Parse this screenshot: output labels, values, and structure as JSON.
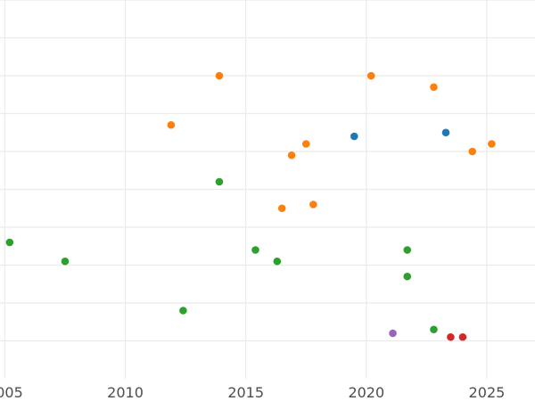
{
  "chart_data": {
    "type": "scatter",
    "title": "",
    "xlabel": "",
    "ylabel": "",
    "xlim": [
      2004.8,
      2027.0
    ],
    "ylim": [
      0,
      10
    ],
    "x_ticks": [
      2005,
      2010,
      2015,
      2020,
      2025
    ],
    "x_tick_labels": [
      "2005",
      "2010",
      "2015",
      "2020",
      "2025"
    ],
    "y_gridlines": [
      1,
      2,
      3,
      4,
      5,
      6,
      7,
      8,
      9,
      10
    ],
    "grid": true,
    "legend": "none",
    "series": [
      {
        "color": "#1f77b4",
        "points": [
          {
            "x": 2019.5,
            "y": 6.4
          },
          {
            "x": 2023.3,
            "y": 6.5
          }
        ]
      },
      {
        "color": "#ff7f0e",
        "points": [
          {
            "x": 2013.9,
            "y": 8.0
          },
          {
            "x": 2020.2,
            "y": 8.0
          },
          {
            "x": 2022.8,
            "y": 7.7
          },
          {
            "x": 2011.9,
            "y": 6.7
          },
          {
            "x": 2017.5,
            "y": 6.2
          },
          {
            "x": 2025.2,
            "y": 6.2
          },
          {
            "x": 2016.9,
            "y": 5.9
          },
          {
            "x": 2024.4,
            "y": 6.0
          },
          {
            "x": 2016.5,
            "y": 4.5
          },
          {
            "x": 2017.8,
            "y": 4.6
          }
        ]
      },
      {
        "color": "#2ca02c",
        "points": [
          {
            "x": 2005.2,
            "y": 3.6
          },
          {
            "x": 2007.5,
            "y": 3.1
          },
          {
            "x": 2013.9,
            "y": 5.2
          },
          {
            "x": 2015.4,
            "y": 3.4
          },
          {
            "x": 2016.3,
            "y": 3.1
          },
          {
            "x": 2021.7,
            "y": 3.4
          },
          {
            "x": 2021.7,
            "y": 2.7
          },
          {
            "x": 2012.4,
            "y": 1.8
          },
          {
            "x": 2022.8,
            "y": 1.3
          }
        ]
      },
      {
        "color": "#d62728",
        "points": [
          {
            "x": 2023.5,
            "y": 1.1
          },
          {
            "x": 2024.0,
            "y": 1.1
          }
        ]
      },
      {
        "color": "#9467bd",
        "points": [
          {
            "x": 2021.1,
            "y": 1.2
          }
        ]
      }
    ]
  }
}
